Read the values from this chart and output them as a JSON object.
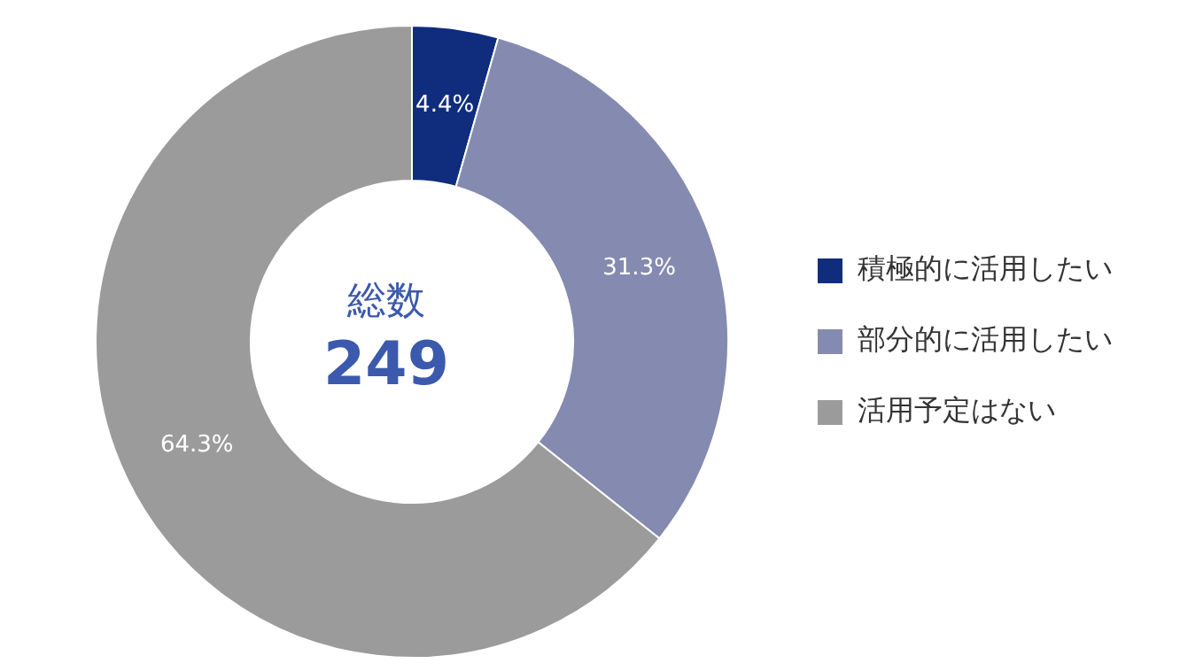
{
  "chart_data": {
    "type": "donut",
    "categories": [
      "積極的に活用したい",
      "部分的に活用したい",
      "活用予定はない"
    ],
    "values": [
      4.4,
      31.3,
      64.3
    ],
    "value_labels": [
      "4.4%",
      "31.3%",
      "64.3%"
    ],
    "colors": [
      "#0f2d7c",
      "#858ab0",
      "#9b9b9b"
    ],
    "annotations": [
      "総数",
      "249"
    ],
    "legend": "right"
  }
}
